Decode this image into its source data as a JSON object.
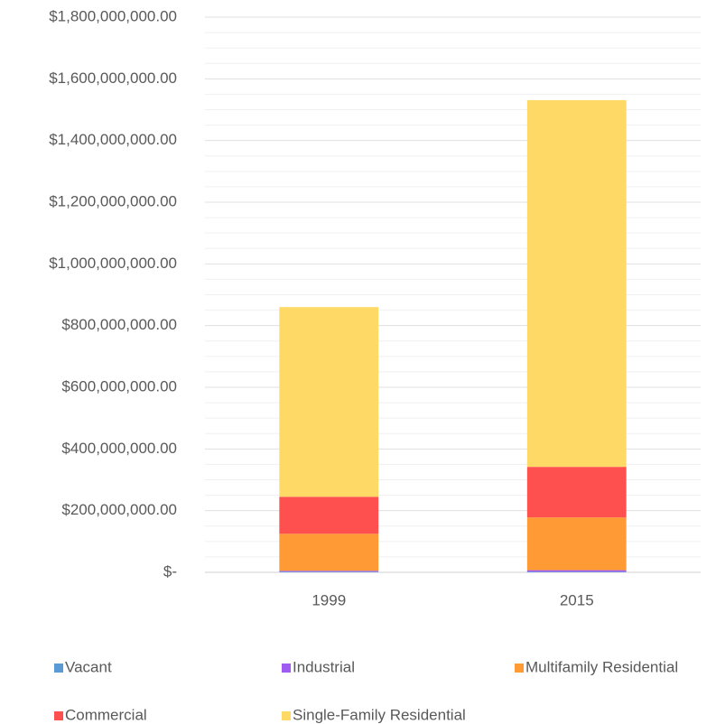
{
  "chart_data": {
    "type": "stacked_bar",
    "categories": [
      "1999",
      "2015"
    ],
    "series": [
      {
        "name": "Vacant",
        "color": "#5b9bd5",
        "values": [
          2000000,
          2000000
        ]
      },
      {
        "name": "Industrial",
        "color": "#9f5cf0",
        "values": [
          3000000,
          5000000
        ]
      },
      {
        "name": "Multifamily Residential",
        "color": "#ff9a35",
        "values": [
          120000000,
          171000000
        ]
      },
      {
        "name": "Commercial",
        "color": "#ff5050",
        "values": [
          120000000,
          164000000
        ]
      },
      {
        "name": "Single-Family Residential",
        "color": "#ffd966",
        "values": [
          615000000,
          1189000000
        ]
      }
    ],
    "ylim": [
      0,
      1800000000
    ],
    "yticks": [
      {
        "value": 0,
        "label": "$-"
      },
      {
        "value": 200000000,
        "label": "$200,000,000.00"
      },
      {
        "value": 400000000,
        "label": "$400,000,000.00"
      },
      {
        "value": 600000000,
        "label": "$600,000,000.00"
      },
      {
        "value": 800000000,
        "label": "$800,000,000.00"
      },
      {
        "value": 1000000000,
        "label": "$1,000,000,000.00"
      },
      {
        "value": 1200000000,
        "label": "$1,200,000,000.00"
      },
      {
        "value": 1400000000,
        "label": "$1,400,000,000.00"
      },
      {
        "value": 1600000000,
        "label": "$1,600,000,000.00"
      },
      {
        "value": 1800000000,
        "label": "$1,800,000,000.00"
      }
    ],
    "minor_yticks": [
      50000000,
      100000000,
      150000000,
      250000000,
      300000000,
      350000000,
      450000000,
      500000000,
      550000000,
      650000000,
      700000000,
      750000000,
      850000000,
      900000000,
      950000000,
      1050000000,
      1100000000,
      1150000000,
      1250000000,
      1300000000,
      1350000000,
      1450000000,
      1500000000,
      1550000000,
      1650000000,
      1700000000,
      1750000000
    ],
    "grid": true,
    "legend": "bottom"
  }
}
